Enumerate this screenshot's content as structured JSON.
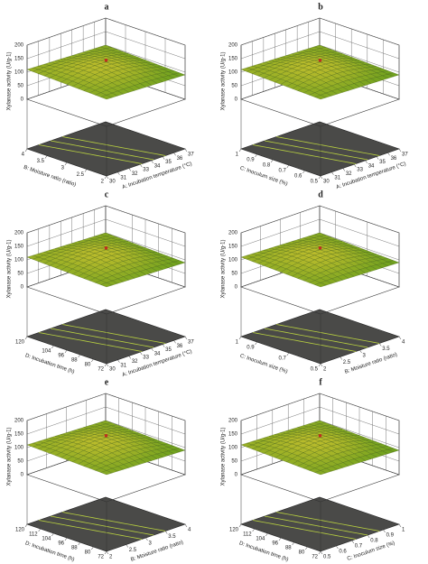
{
  "chart_data": [
    {
      "type": "surface3d",
      "title": "a",
      "zlabel": "Xylanase activity (U/g-1)",
      "zlim": [
        0,
        200
      ],
      "zticks": [
        0,
        50,
        100,
        150,
        200
      ],
      "xlabel": "A: Incubation temperature (°C)",
      "xlim": [
        30,
        37
      ],
      "xticks": [
        30,
        31,
        32,
        33,
        34,
        35,
        36,
        37
      ],
      "ylabel": "B: Moisture ratio (ratio)",
      "ylim": [
        2,
        4
      ],
      "yticks": [
        2,
        2.5,
        3,
        3.5,
        4
      ]
    },
    {
      "type": "surface3d",
      "title": "b",
      "zlabel": "Xylanase activity (U/g-1)",
      "zlim": [
        0,
        200
      ],
      "zticks": [
        0,
        50,
        100,
        150,
        200
      ],
      "xlabel": "A: Incubation temperature (°C)",
      "xlim": [
        30,
        37
      ],
      "xticks": [
        30,
        31,
        32,
        33,
        34,
        35,
        36,
        37
      ],
      "ylabel": "C: Inoculum size (%)",
      "ylim": [
        0.5,
        1
      ],
      "yticks": [
        0.5,
        0.6,
        0.7,
        0.8,
        0.9,
        1
      ]
    },
    {
      "type": "surface3d",
      "title": "c",
      "zlabel": "Xylanase activity (U/g-1)",
      "zlim": [
        0,
        200
      ],
      "zticks": [
        0,
        50,
        100,
        150,
        200
      ],
      "xlabel": "A: Incubation temperature (°C)",
      "xlim": [
        30,
        37
      ],
      "xticks": [
        30,
        31,
        32,
        33,
        34,
        35,
        36,
        37
      ],
      "ylabel": "D: Incubation time (h)",
      "ylim": [
        72,
        120
      ],
      "yticks": [
        72,
        80,
        88,
        96,
        104,
        120
      ]
    },
    {
      "type": "surface3d",
      "title": "d",
      "zlabel": "Xylanase activity (U/g-1)",
      "zlim": [
        0,
        200
      ],
      "zticks": [
        0,
        50,
        100,
        150,
        200
      ],
      "xlabel": "B: Moisture ratio (ratio)",
      "xlim": [
        2,
        4
      ],
      "xticks": [
        2,
        2.5,
        3,
        3.5,
        4
      ],
      "ylabel": "C: Inoculum size (%)",
      "ylim": [
        0.5,
        1
      ],
      "yticks": [
        0.5,
        0.7,
        0.9,
        1
      ]
    },
    {
      "type": "surface3d",
      "title": "e",
      "zlabel": "Xylanase activity (U/g-1)",
      "zlim": [
        0,
        200
      ],
      "zticks": [
        0,
        50,
        100,
        150,
        200
      ],
      "xlabel": "B: Moisture ratio (ratio)",
      "xlim": [
        2,
        4
      ],
      "xticks": [
        2,
        2.5,
        3,
        3.5,
        4
      ],
      "ylabel": "D: Incubation time (h)",
      "ylim": [
        72,
        120
      ],
      "yticks": [
        72,
        80,
        88,
        96,
        104,
        112,
        120
      ]
    },
    {
      "type": "surface3d",
      "title": "f",
      "zlabel": "Xylanase activity (U/g-1)",
      "zlim": [
        0,
        200
      ],
      "zticks": [
        0,
        50,
        100,
        150,
        200
      ],
      "xlabel": "C: Inoculum size (%)",
      "xlim": [
        0.5,
        1
      ],
      "xticks": [
        0.5,
        0.6,
        0.7,
        0.8,
        0.9,
        1
      ],
      "ylabel": "D: Incubation time (h)",
      "ylim": [
        72,
        120
      ],
      "yticks": [
        72,
        80,
        88,
        96,
        104,
        112,
        120
      ]
    }
  ]
}
